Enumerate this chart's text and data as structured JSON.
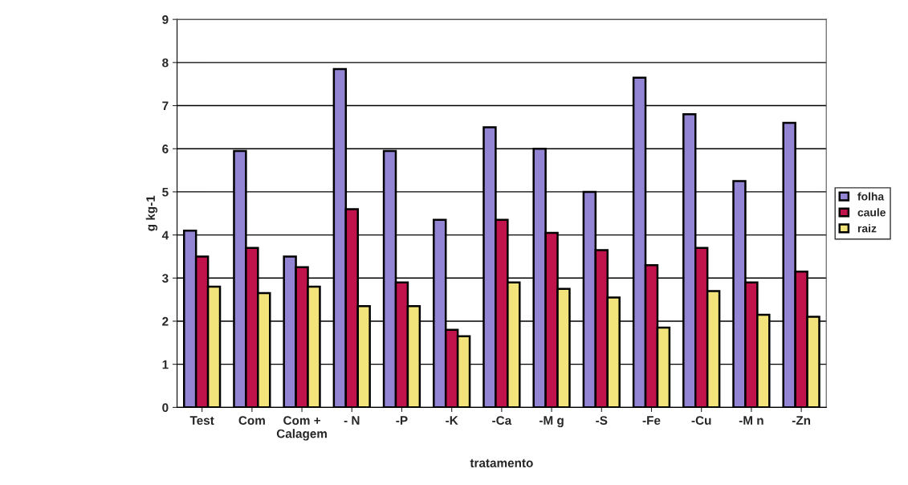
{
  "chart_data": {
    "type": "bar",
    "xlabel": "tratamento",
    "ylabel": "g kg-1",
    "categories": [
      "Test",
      "Com",
      "Com +\nCalagem",
      "- N",
      "-P",
      "-K",
      "-Ca",
      "-M g",
      "-S",
      "-Fe",
      "-Cu",
      "-M n",
      "-Zn"
    ],
    "series": [
      {
        "name": "folha",
        "color": "#9484d4",
        "values": [
          4.1,
          5.95,
          3.5,
          7.85,
          5.95,
          4.35,
          6.5,
          6.0,
          5.0,
          7.65,
          6.8,
          5.25,
          6.6
        ]
      },
      {
        "name": "caule",
        "color": "#c0134c",
        "values": [
          3.5,
          3.7,
          3.25,
          4.6,
          2.9,
          1.8,
          4.35,
          4.05,
          3.65,
          3.3,
          3.7,
          2.9,
          3.15
        ]
      },
      {
        "name": "raiz",
        "color": "#f2e47a",
        "values": [
          2.8,
          2.65,
          2.8,
          2.35,
          2.35,
          1.65,
          2.9,
          2.75,
          2.55,
          1.85,
          2.7,
          2.15,
          2.1
        ]
      }
    ],
    "ylim": [
      0,
      9
    ],
    "yticks": [
      0,
      1,
      2,
      3,
      4,
      5,
      6,
      7,
      8,
      9
    ],
    "grid": "y",
    "legend": "right"
  }
}
